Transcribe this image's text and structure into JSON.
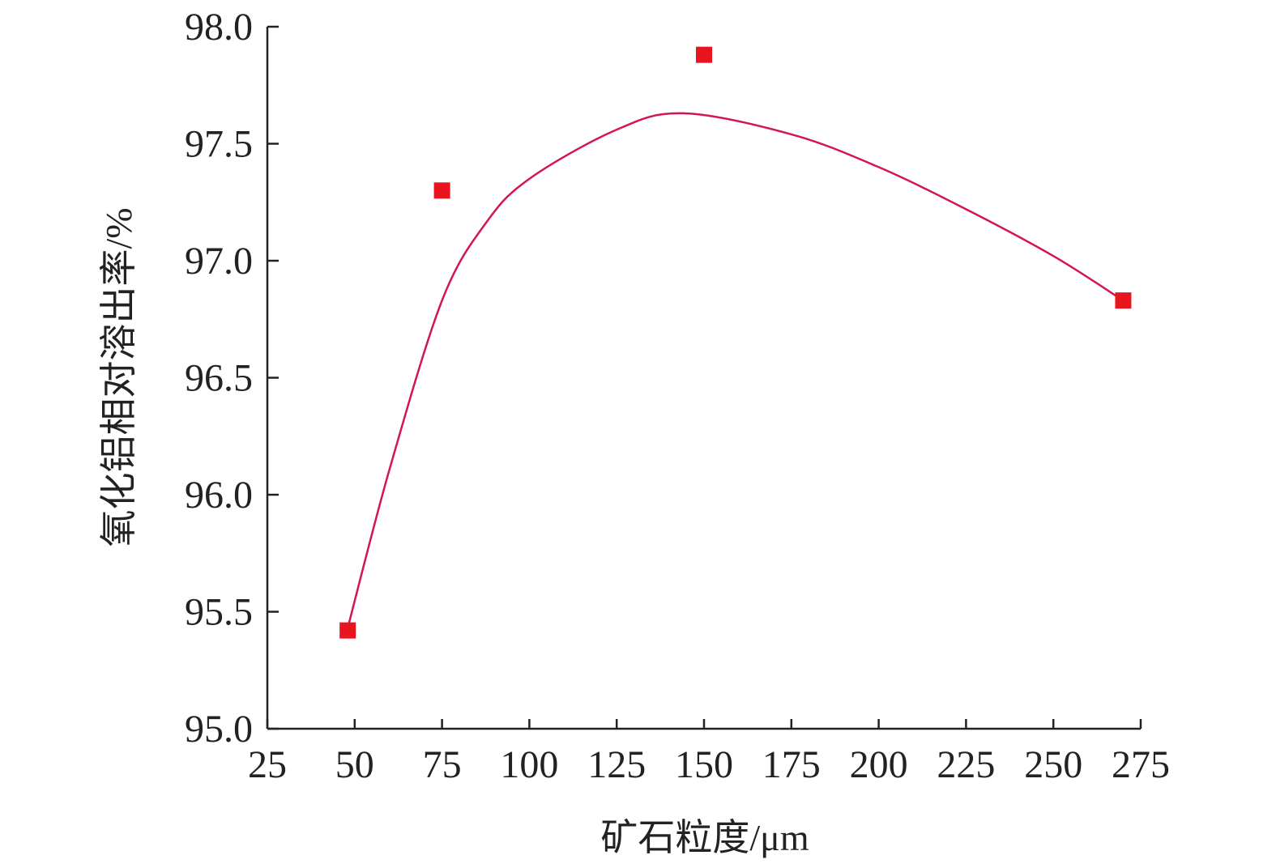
{
  "chart_data": {
    "type": "scatter",
    "x_label": "矿石粒度/μm",
    "y_label": "氧化铝相对溶出率/%",
    "xlim": [
      25,
      275
    ],
    "xticks": [
      25,
      50,
      75,
      100,
      125,
      150,
      175,
      200,
      225,
      250,
      275
    ],
    "ylim": [
      95.0,
      98.0
    ],
    "yticks": [
      {
        "value": 95.0,
        "label": "95.0"
      },
      {
        "value": 95.5,
        "label": "95.5"
      },
      {
        "value": 96.0,
        "label": "96.0"
      },
      {
        "value": 96.5,
        "label": "96.5"
      },
      {
        "value": 97.0,
        "label": "97.0"
      },
      {
        "value": 97.5,
        "label": "97.5"
      },
      {
        "value": 98.0,
        "label": "98.0"
      }
    ],
    "series": [
      {
        "type": "scatter",
        "color": "#e8151f",
        "x": [
          48,
          75,
          150,
          270
        ],
        "values": [
          95.42,
          97.3,
          97.88,
          96.83
        ]
      },
      {
        "type": "line",
        "color": "#d4145a",
        "x": [
          48,
          60,
          75,
          87.5,
          100,
          125,
          144,
          175,
          200,
          225,
          250,
          270
        ],
        "values": [
          95.43,
          96.11,
          96.83,
          97.16,
          97.35,
          97.56,
          97.63,
          97.54,
          97.4,
          97.22,
          97.02,
          96.83
        ]
      }
    ]
  }
}
